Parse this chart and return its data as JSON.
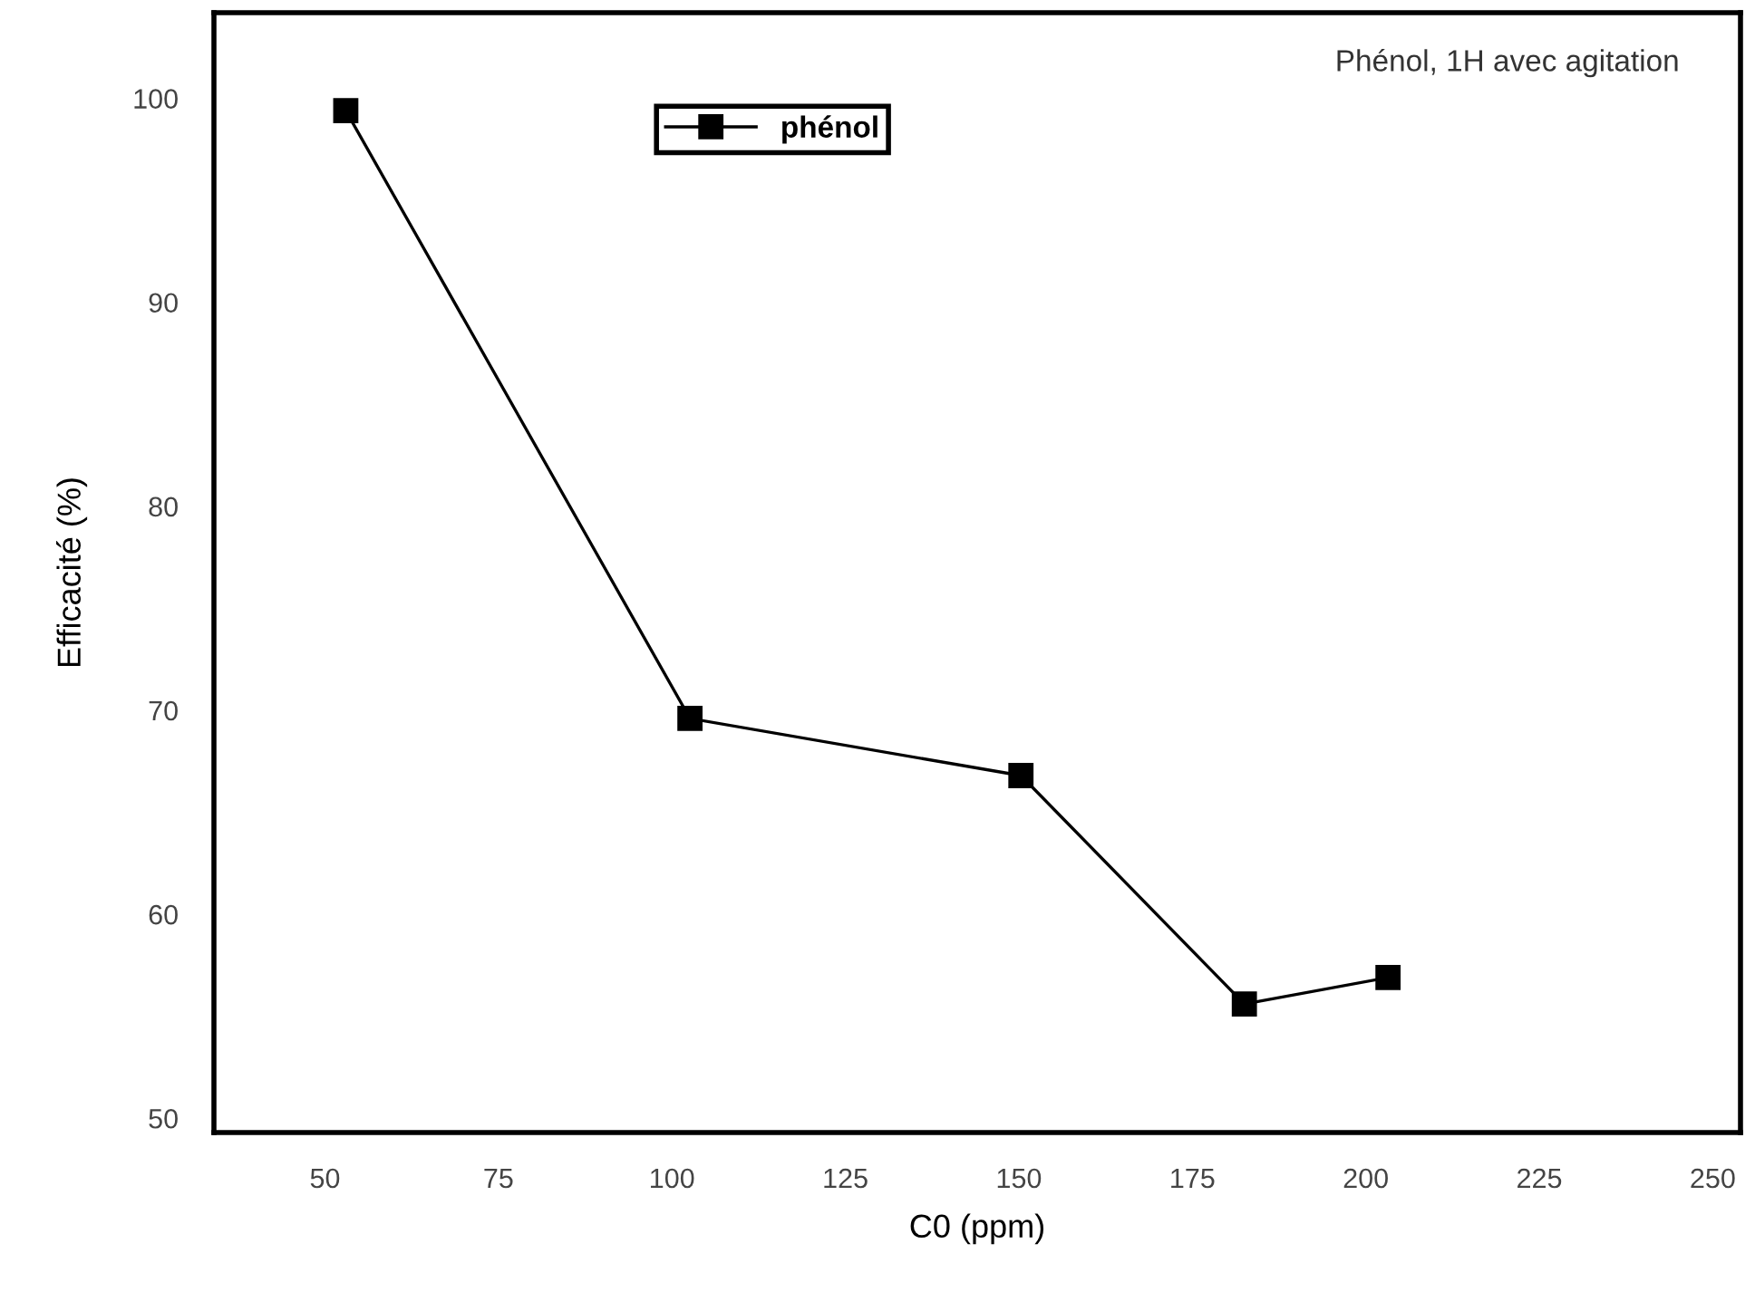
{
  "chart_data": {
    "type": "line",
    "xlabel": "C0 (ppm)",
    "ylabel": "Efficacité (%)",
    "annotations": [
      "Phénol, 1H avec agitation"
    ],
    "x": [
      53,
      102.6,
      150.3,
      182.5,
      203.2
    ],
    "series": [
      {
        "name": "phénol",
        "color": "#000000",
        "values": [
          99.4,
          69.6,
          66.8,
          55.6,
          56.9
        ]
      }
    ],
    "xlim": [
      34,
      254
    ],
    "xticks": [
      50,
      75,
      100,
      125,
      150,
      175,
      200,
      225,
      250
    ],
    "ylim": [
      49.3,
      104.2
    ],
    "yticks": [
      50,
      60,
      70,
      80,
      90,
      100
    ],
    "grid": false,
    "legend": "top",
    "marker": "square",
    "line_style": "solid"
  }
}
